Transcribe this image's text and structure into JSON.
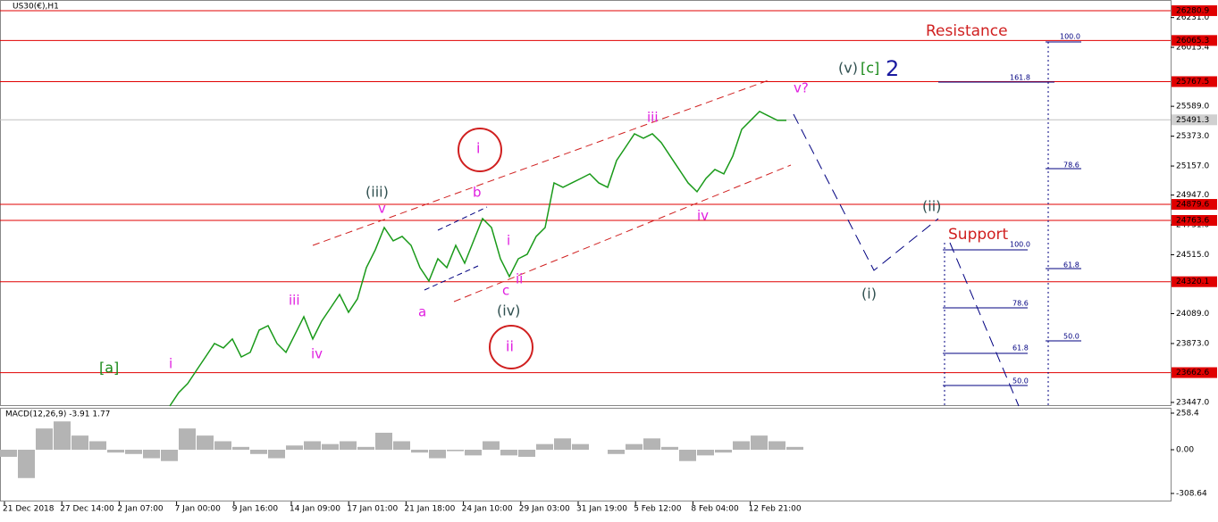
{
  "chart_data": {
    "type": "line",
    "title": "US30(€),H1",
    "color": "#1a9a1a",
    "ylim": [
      23421,
      26358
    ],
    "yticks": [
      {
        "value": 26231,
        "label": "26231.0"
      },
      {
        "value": 26015.4,
        "label": "26015.4"
      },
      {
        "value": 25589,
        "label": "25589.0"
      },
      {
        "value": 25373,
        "label": "25373.0"
      },
      {
        "value": 25157,
        "label": "25157.0"
      },
      {
        "value": 24947,
        "label": "24947.0"
      },
      {
        "value": 24731,
        "label": "24731.0"
      },
      {
        "value": 24515,
        "label": "24515.0"
      },
      {
        "value": 24089,
        "label": "24089.0"
      },
      {
        "value": 23873,
        "label": "23873.0"
      },
      {
        "value": 23447,
        "label": "23447.0"
      }
    ],
    "levels": [
      26280.9,
      26065.3,
      25767.5,
      24879.6,
      24763.6,
      24320.1,
      23662.6
    ],
    "level_color": "#e00000",
    "current_price": 25491.3,
    "x_labels": [
      "21 Dec 2018",
      "27 Dec 14:00",
      "2 Jan 07:00",
      "7 Jan 00:00",
      "9 Jan 16:00",
      "14 Jan 09:00",
      "17 Jan 01:00",
      "21 Jan 18:00",
      "24 Jan 10:00",
      "29 Jan 03:00",
      "31 Jan 19:00",
      "5 Feb 12:00",
      "8 Feb 04:00",
      "12 Feb 21:00"
    ],
    "values": [
      23421,
      23518,
      23583,
      23680,
      23776,
      23873,
      23841,
      23906,
      23776,
      23809,
      23970,
      24002,
      23873,
      23809,
      23938,
      24067,
      23906,
      24035,
      24131,
      24228,
      24099,
      24196,
      24422,
      24551,
      24712,
      24616,
      24648,
      24583,
      24422,
      24325,
      24486,
      24422,
      24583,
      24454,
      24616,
      24777,
      24712,
      24486,
      24357,
      24486,
      24519,
      24648,
      24712,
      25035,
      25003,
      25035,
      25067,
      25100,
      25035,
      25003,
      25197,
      25293,
      25390,
      25358,
      25390,
      25326,
      25229,
      25132,
      25035,
      24971,
      25067,
      25132,
      25100,
      25229,
      25422,
      25487,
      25552,
      25519,
      25487,
      25487
    ],
    "macd": {
      "label": "MACD(12,26,9) -3.91 1.77",
      "ylim": [
        -308.64,
        258.4
      ],
      "yticks": [
        258.4,
        {
          "value": 0,
          "label": "0.00"
        },
        -308.64
      ],
      "color": "#b4b4b4",
      "values": [
        -50,
        -200,
        150,
        200,
        100,
        60,
        -20,
        -30,
        -60,
        -80,
        150,
        100,
        60,
        20,
        -30,
        -60,
        30,
        60,
        40,
        60,
        20,
        120,
        60,
        -20,
        -60,
        -10,
        -40,
        60,
        -40,
        -50,
        40,
        80,
        40,
        0,
        -30,
        40,
        80,
        20,
        -80,
        -40,
        -20,
        60,
        100,
        60,
        20
      ]
    },
    "annotations": [
      "Resistance",
      "Support",
      "(v)",
      "[c]",
      "2",
      "v?",
      "iii",
      "i",
      "b",
      "(iii)",
      "v",
      "(ii)",
      "i",
      "iv",
      "iii",
      "c",
      "ii",
      "a",
      "(iv)",
      "(i)",
      "ii",
      "iv",
      "[a]",
      "i"
    ],
    "fib_labels": [
      "100.0",
      "161.8",
      "78.6",
      "61.8",
      "50.0",
      "100.0",
      "78.6",
      "61.8",
      "50.0"
    ]
  }
}
